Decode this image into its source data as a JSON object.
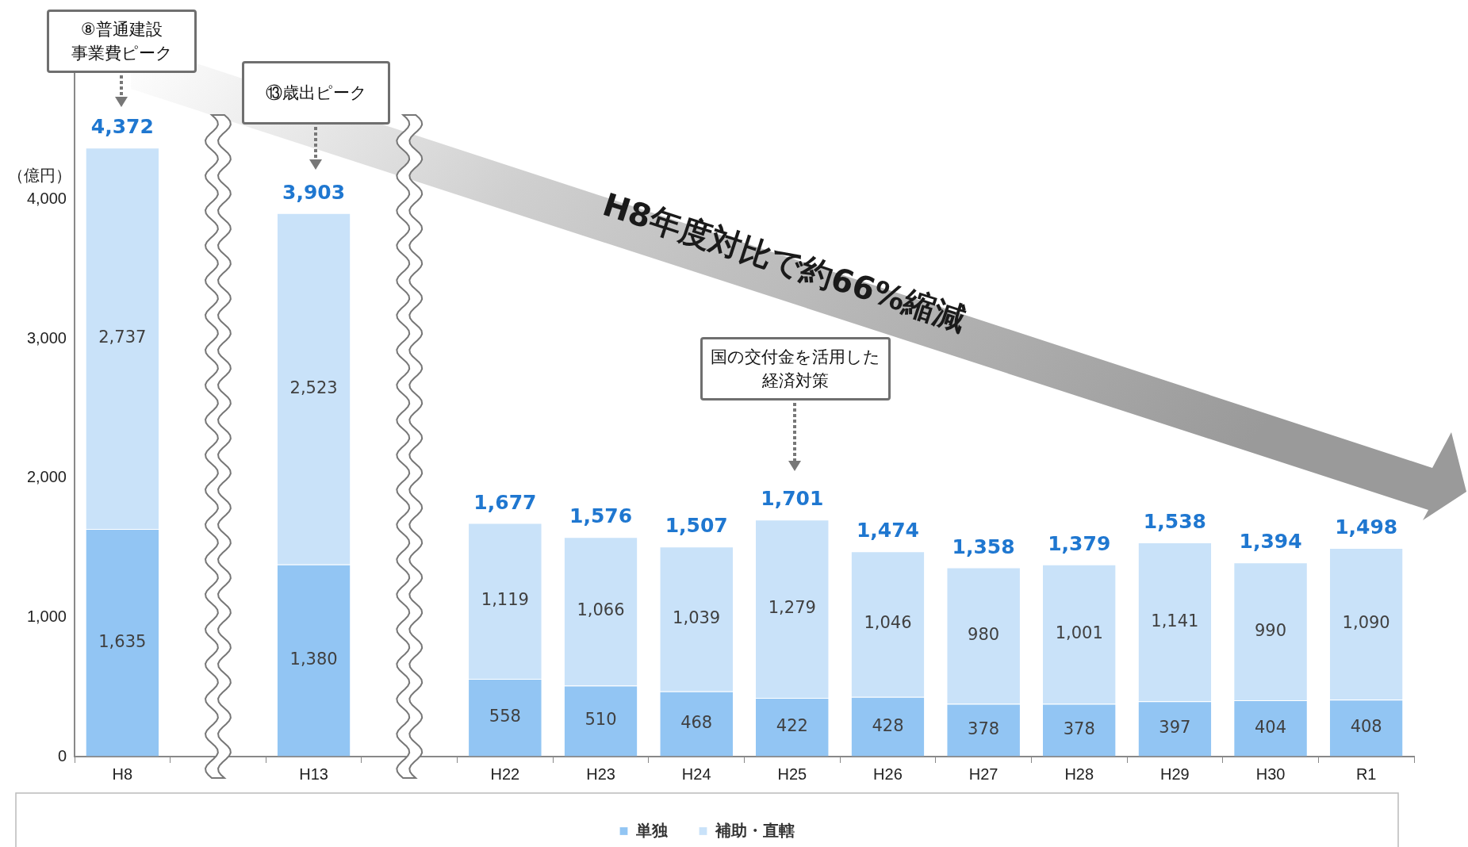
{
  "chart_data": {
    "type": "bar",
    "stacked": true,
    "ylabel": "（億円）",
    "categories": [
      "H8",
      null,
      "H13",
      null,
      "H22",
      "H23",
      "H24",
      "H25",
      "H26",
      "H27",
      "H28",
      "H29",
      "H30",
      "R1"
    ],
    "series": [
      {
        "name": "単独",
        "color": "#92c5f3",
        "values": [
          1635,
          null,
          1380,
          null,
          558,
          510,
          468,
          422,
          428,
          378,
          378,
          397,
          404,
          408
        ],
        "value_labels": [
          "1,635",
          null,
          "1,380",
          null,
          "558",
          "510",
          "468",
          "422",
          "428",
          "378",
          "378",
          "397",
          "404",
          "408"
        ]
      },
      {
        "name": "補助・直轄",
        "color": "#c9e2f9",
        "values": [
          2737,
          null,
          2523,
          null,
          1119,
          1066,
          1039,
          1279,
          1046,
          980,
          1001,
          1141,
          990,
          1090
        ],
        "value_labels": [
          "2,737",
          null,
          "2,523",
          null,
          "1,119",
          "1,066",
          "1,039",
          "1,279",
          "1,046",
          "980",
          "1,001",
          "1,141",
          "990",
          "1,090"
        ]
      }
    ],
    "totals": [
      "4,372",
      null,
      "3,903",
      null,
      "1,677",
      "1,576",
      "1,507",
      "1,701",
      "1,474",
      "1,358",
      "1,379",
      "1,538",
      "1,394",
      "1,498"
    ],
    "ylim": [
      0,
      5000
    ],
    "yticks": [
      0,
      {
        "value": 1000,
        "label": "1,000"
      },
      {
        "value": 2000,
        "label": "2,000"
      },
      {
        "value": 3000,
        "label": "3,000"
      },
      {
        "value": 4000,
        "label": "4,000"
      }
    ],
    "grid": false,
    "legend": "bottom",
    "annotations": [
      "⑧普通建設事業費ピーク",
      "⑬歳出ピーク",
      "国の交付金を活用した経済対策",
      "H8年度対比で約66%縮減"
    ]
  }
}
